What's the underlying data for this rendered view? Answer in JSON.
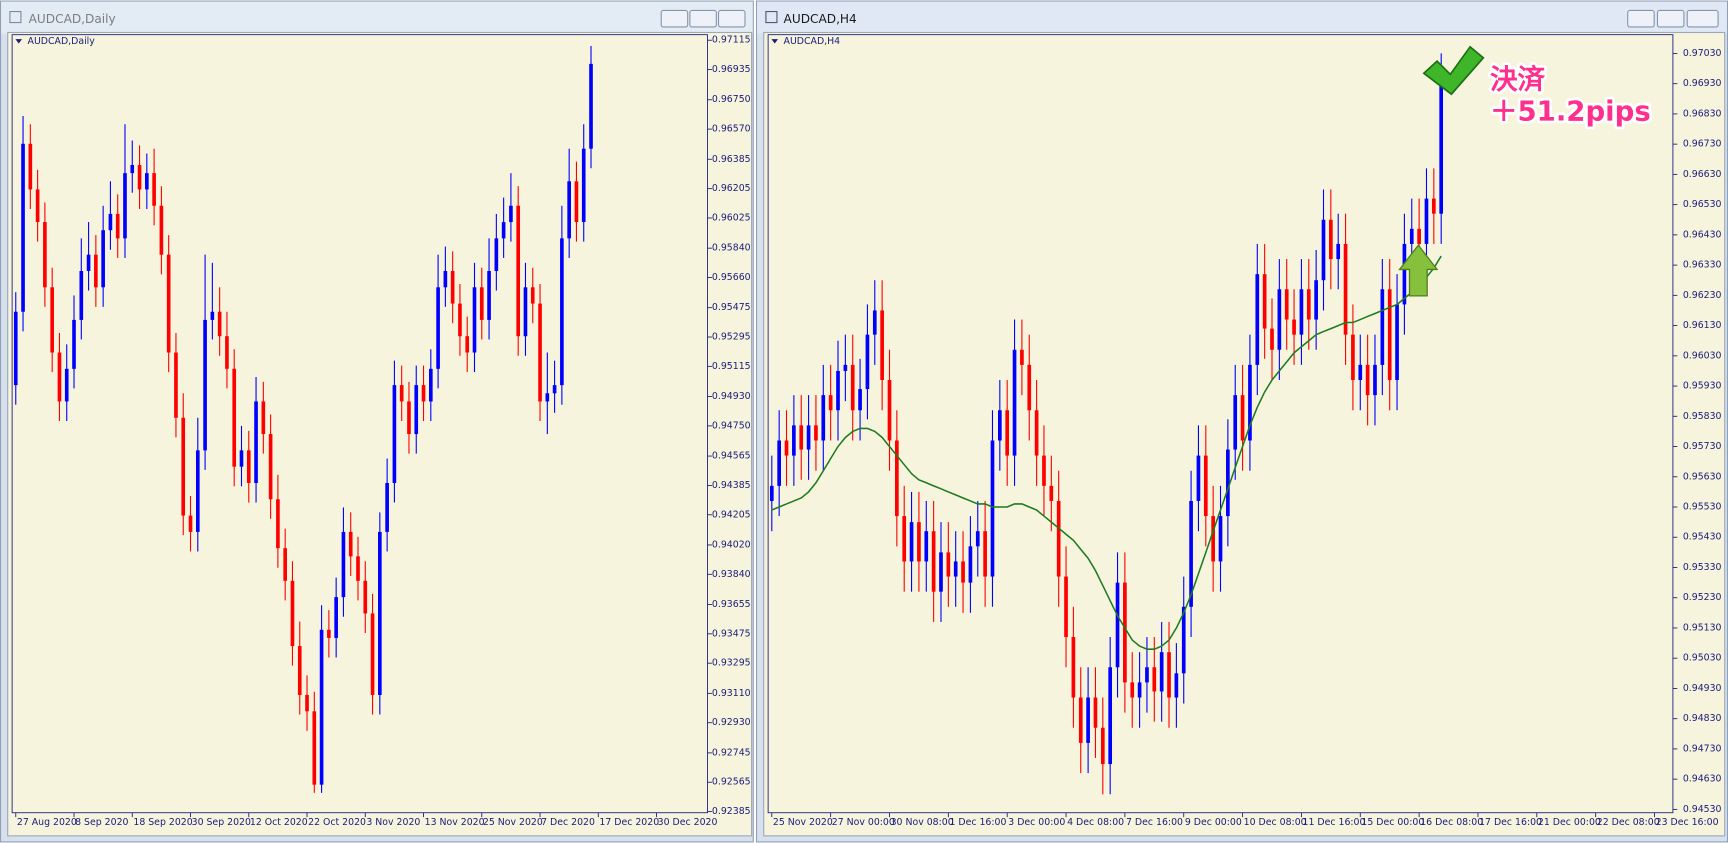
{
  "windows": [
    {
      "title": "AUDCAD,Daily"
    },
    {
      "title": "AUDCAD,H4"
    }
  ],
  "chart_data": [
    {
      "type": "candlestick",
      "label": "AUDCAD,Daily",
      "up_color": "#0000ff",
      "down_color": "#ff0000",
      "xlim": [
        -0.5,
        95
      ],
      "ylim": [
        0.92378,
        0.97149
      ],
      "xticks": [
        {
          "value": 0,
          "label": "27 Aug 2020"
        },
        {
          "value": 8,
          "label": "8 Sep 2020"
        },
        {
          "value": 16,
          "label": "18 Sep 2020"
        },
        {
          "value": 24,
          "label": "30 Sep 2020"
        },
        {
          "value": 32,
          "label": "12 Oct 2020"
        },
        {
          "value": 40,
          "label": "22 Oct 2020"
        },
        {
          "value": 48,
          "label": "3 Nov 2020"
        },
        {
          "value": 56,
          "label": "13 Nov 2020"
        },
        {
          "value": 64,
          "label": "25 Nov 2020"
        },
        {
          "value": 72,
          "label": "7 Dec 2020"
        },
        {
          "value": 80,
          "label": "17 Dec 2020"
        },
        {
          "value": 88,
          "label": "30 Dec 2020"
        }
      ],
      "yticks": [
        0.97115,
        0.96935,
        {
          "value": 0.9675,
          "label": "0.96750"
        },
        {
          "value": 0.9657,
          "label": "0.96570"
        },
        0.96385,
        0.96205,
        0.96025,
        {
          "value": 0.9584,
          "label": "0.95840"
        },
        {
          "value": 0.9566,
          "label": "0.95660"
        },
        0.95475,
        0.95295,
        0.95115,
        {
          "value": 0.9493,
          "label": "0.94930"
        },
        {
          "value": 0.9475,
          "label": "0.94750"
        },
        0.94565,
        0.94385,
        0.94205,
        {
          "value": 0.9402,
          "label": "0.94020"
        },
        {
          "value": 0.9384,
          "label": "0.93840"
        },
        0.93655,
        0.93475,
        0.93295,
        {
          "value": 0.9311,
          "label": "0.93110"
        },
        {
          "value": 0.9293,
          "label": "0.92930"
        },
        0.92745,
        0.92565,
        0.92385
      ],
      "open": [
        0.95,
        0.9545,
        0.9648,
        0.962,
        0.96,
        0.956,
        0.952,
        0.949,
        0.951,
        0.954,
        0.957,
        0.958,
        0.956,
        0.9595,
        0.9605,
        0.959,
        0.963,
        0.9635,
        0.962,
        0.963,
        0.961,
        0.958,
        0.952,
        0.948,
        0.942,
        0.941,
        0.946,
        0.954,
        0.9545,
        0.953,
        0.951,
        0.945,
        0.946,
        0.944,
        0.949,
        0.947,
        0.943,
        0.94,
        0.938,
        0.934,
        0.931,
        0.93,
        0.9255,
        0.935,
        0.9345,
        0.937,
        0.941,
        0.9395,
        0.938,
        0.936,
        0.931,
        0.941,
        0.944,
        0.95,
        0.949,
        0.947,
        0.95,
        0.949,
        0.951,
        0.956,
        0.957,
        0.955,
        0.953,
        0.952,
        0.956,
        0.954,
        0.957,
        0.959,
        0.96,
        0.961,
        0.953,
        0.956,
        0.955,
        0.949,
        0.9495,
        0.95,
        0.959,
        0.9625,
        0.96,
        0.9645
      ],
      "high": [
        0.9557,
        0.9665,
        0.966,
        0.9632,
        0.9612,
        0.9572,
        0.9532,
        0.9525,
        0.9555,
        0.959,
        0.96,
        0.9592,
        0.961,
        0.9625,
        0.9617,
        0.966,
        0.965,
        0.9647,
        0.9642,
        0.9645,
        0.9622,
        0.9592,
        0.9532,
        0.9495,
        0.9432,
        0.948,
        0.958,
        0.9575,
        0.956,
        0.9545,
        0.9522,
        0.9475,
        0.9472,
        0.9505,
        0.9502,
        0.9482,
        0.9445,
        0.9412,
        0.9392,
        0.9355,
        0.9322,
        0.9312,
        0.9365,
        0.9362,
        0.9382,
        0.9425,
        0.9422,
        0.9407,
        0.9392,
        0.9372,
        0.9422,
        0.9455,
        0.9515,
        0.9512,
        0.9502,
        0.9512,
        0.9512,
        0.9522,
        0.958,
        0.9585,
        0.9582,
        0.9562,
        0.9542,
        0.9575,
        0.9572,
        0.959,
        0.9605,
        0.9615,
        0.963,
        0.9622,
        0.9575,
        0.9572,
        0.9562,
        0.952,
        0.9515,
        0.961,
        0.9645,
        0.9637,
        0.966,
        0.9708
      ],
      "low": [
        0.9488,
        0.9533,
        0.9608,
        0.9588,
        0.9548,
        0.9508,
        0.9478,
        0.9478,
        0.9498,
        0.9528,
        0.9558,
        0.9548,
        0.9548,
        0.9583,
        0.9578,
        0.9578,
        0.9618,
        0.9608,
        0.9608,
        0.9598,
        0.9568,
        0.9508,
        0.9468,
        0.9408,
        0.9398,
        0.9398,
        0.9448,
        0.9528,
        0.9518,
        0.9498,
        0.9438,
        0.9438,
        0.9428,
        0.9428,
        0.9458,
        0.9418,
        0.9388,
        0.9368,
        0.9328,
        0.9298,
        0.9288,
        0.925,
        0.925,
        0.9333,
        0.9333,
        0.9358,
        0.9383,
        0.9368,
        0.9348,
        0.9298,
        0.9298,
        0.9398,
        0.9428,
        0.9478,
        0.9458,
        0.9458,
        0.9478,
        0.9478,
        0.9498,
        0.9548,
        0.9538,
        0.9518,
        0.9508,
        0.9508,
        0.9528,
        0.9528,
        0.9558,
        0.9578,
        0.9588,
        0.9518,
        0.9518,
        0.9538,
        0.9478,
        0.947,
        0.9483,
        0.9488,
        0.9578,
        0.9588,
        0.9588,
        0.9633
      ],
      "close": [
        0.9545,
        0.9648,
        0.962,
        0.96,
        0.956,
        0.952,
        0.949,
        0.951,
        0.954,
        0.957,
        0.958,
        0.956,
        0.9595,
        0.9605,
        0.959,
        0.963,
        0.9635,
        0.962,
        0.963,
        0.961,
        0.958,
        0.952,
        0.948,
        0.942,
        0.941,
        0.946,
        0.954,
        0.9545,
        0.953,
        0.951,
        0.945,
        0.946,
        0.944,
        0.949,
        0.947,
        0.943,
        0.94,
        0.938,
        0.934,
        0.931,
        0.93,
        0.9255,
        0.935,
        0.9345,
        0.937,
        0.941,
        0.9395,
        0.938,
        0.936,
        0.931,
        0.941,
        0.944,
        0.95,
        0.949,
        0.947,
        0.95,
        0.949,
        0.951,
        0.956,
        0.957,
        0.955,
        0.953,
        0.952,
        0.956,
        0.954,
        0.957,
        0.959,
        0.96,
        0.961,
        0.953,
        0.956,
        0.955,
        0.949,
        0.9495,
        0.95,
        0.959,
        0.9625,
        0.96,
        0.9645,
        0.9697
      ]
    },
    {
      "type": "candlestick",
      "label": "AUDCAD,H4",
      "up_color": "#0000ff",
      "down_color": "#ff0000",
      "xlim": [
        -0.5,
        122.5
      ],
      "ylim": [
        0.94519,
        0.97092
      ],
      "xticks": [
        {
          "value": 0,
          "label": "25 Nov 2020"
        },
        {
          "value": 8,
          "label": "27 Nov 00:00"
        },
        {
          "value": 16,
          "label": "30 Nov 08:00"
        },
        {
          "value": 24,
          "label": "1 Dec 16:00"
        },
        {
          "value": 32,
          "label": "3 Dec 00:00"
        },
        {
          "value": 40,
          "label": "4 Dec 08:00"
        },
        {
          "value": 48,
          "label": "7 Dec 16:00"
        },
        {
          "value": 56,
          "label": "9 Dec 00:00"
        },
        {
          "value": 64,
          "label": "10 Dec 08:00"
        },
        {
          "value": 72,
          "label": "11 Dec 16:00"
        },
        {
          "value": 80,
          "label": "15 Dec 00:00"
        },
        {
          "value": 88,
          "label": "16 Dec 08:00"
        },
        {
          "value": 96,
          "label": "17 Dec 16:00"
        },
        {
          "value": 104,
          "label": "21 Dec 00:00"
        },
        {
          "value": 112,
          "label": "22 Dec 08:00"
        },
        {
          "value": 120,
          "label": "23 Dec 16:00"
        }
      ],
      "yticks": [
        {
          "value": 0.9703,
          "label": "0.97030"
        },
        {
          "value": 0.9693,
          "label": "0.96930"
        },
        {
          "value": 0.9683,
          "label": "0.96830"
        },
        {
          "value": 0.9673,
          "label": "0.96730"
        },
        {
          "value": 0.9663,
          "label": "0.96630"
        },
        {
          "value": 0.9653,
          "label": "0.96530"
        },
        {
          "value": 0.9643,
          "label": "0.96430"
        },
        {
          "value": 0.9633,
          "label": "0.96330"
        },
        {
          "value": 0.9623,
          "label": "0.96230"
        },
        {
          "value": 0.9613,
          "label": "0.96130"
        },
        {
          "value": 0.9603,
          "label": "0.96030"
        },
        {
          "value": 0.9593,
          "label": "0.95930"
        },
        {
          "value": 0.9583,
          "label": "0.95830"
        },
        {
          "value": 0.9573,
          "label": "0.95730"
        },
        {
          "value": 0.9563,
          "label": "0.95630"
        },
        {
          "value": 0.9553,
          "label": "0.95530"
        },
        {
          "value": 0.9543,
          "label": "0.95430"
        },
        {
          "value": 0.9533,
          "label": "0.95330"
        },
        {
          "value": 0.9523,
          "label": "0.95230"
        },
        {
          "value": 0.9513,
          "label": "0.95130"
        },
        {
          "value": 0.9503,
          "label": "0.95030"
        },
        {
          "value": 0.9493,
          "label": "0.94930"
        },
        {
          "value": 0.9483,
          "label": "0.94830"
        },
        {
          "value": 0.9473,
          "label": "0.94730"
        },
        {
          "value": 0.9463,
          "label": "0.94630"
        },
        {
          "value": 0.9453,
          "label": "0.94530"
        }
      ],
      "open": [
        0.9555,
        0.956,
        0.9575,
        0.957,
        0.958,
        0.9572,
        0.958,
        0.9575,
        0.959,
        0.9585,
        0.9598,
        0.96,
        0.9585,
        0.9592,
        0.961,
        0.9618,
        0.9595,
        0.9575,
        0.955,
        0.9535,
        0.9548,
        0.9535,
        0.9545,
        0.9525,
        0.9538,
        0.953,
        0.9535,
        0.9528,
        0.954,
        0.9545,
        0.953,
        0.9575,
        0.9585,
        0.957,
        0.9605,
        0.96,
        0.9585,
        0.957,
        0.956,
        0.9555,
        0.953,
        0.951,
        0.949,
        0.9475,
        0.949,
        0.948,
        0.9468,
        0.95,
        0.9528,
        0.9495,
        0.949,
        0.9495,
        0.95,
        0.9492,
        0.9505,
        0.949,
        0.9498,
        0.952,
        0.9555,
        0.957,
        0.955,
        0.9535,
        0.955,
        0.9572,
        0.959,
        0.9575,
        0.96,
        0.963,
        0.9612,
        0.9605,
        0.9625,
        0.9615,
        0.961,
        0.9625,
        0.9615,
        0.9628,
        0.9648,
        0.9635,
        0.964,
        0.961,
        0.9595,
        0.96,
        0.959,
        0.96,
        0.9625,
        0.9595,
        0.962,
        0.964,
        0.9645,
        0.964,
        0.9655,
        0.965
      ],
      "high": [
        0.957,
        0.9585,
        0.9585,
        0.959,
        0.959,
        0.959,
        0.959,
        0.96,
        0.96,
        0.9608,
        0.961,
        0.961,
        0.9602,
        0.962,
        0.9628,
        0.9628,
        0.9605,
        0.9585,
        0.956,
        0.9558,
        0.9558,
        0.9555,
        0.9555,
        0.9548,
        0.9548,
        0.9545,
        0.9545,
        0.955,
        0.9555,
        0.9555,
        0.9585,
        0.9595,
        0.9595,
        0.9615,
        0.9615,
        0.961,
        0.9595,
        0.958,
        0.957,
        0.9565,
        0.954,
        0.952,
        0.95,
        0.95,
        0.95,
        0.949,
        0.951,
        0.9538,
        0.9538,
        0.9505,
        0.9505,
        0.951,
        0.951,
        0.9515,
        0.9515,
        0.9508,
        0.953,
        0.9565,
        0.958,
        0.958,
        0.956,
        0.956,
        0.9582,
        0.96,
        0.96,
        0.961,
        0.964,
        0.964,
        0.9622,
        0.9635,
        0.9635,
        0.9625,
        0.9635,
        0.9635,
        0.9638,
        0.9658,
        0.9658,
        0.965,
        0.965,
        0.962,
        0.961,
        0.961,
        0.961,
        0.9635,
        0.9635,
        0.963,
        0.965,
        0.9655,
        0.9655,
        0.9665,
        0.9665,
        0.9703
      ],
      "low": [
        0.9545,
        0.955,
        0.956,
        0.956,
        0.9562,
        0.9562,
        0.9565,
        0.9565,
        0.9575,
        0.9575,
        0.9588,
        0.9575,
        0.9575,
        0.9582,
        0.96,
        0.9585,
        0.9565,
        0.954,
        0.9525,
        0.9525,
        0.9525,
        0.9525,
        0.9515,
        0.9515,
        0.952,
        0.952,
        0.9518,
        0.9518,
        0.953,
        0.952,
        0.952,
        0.9565,
        0.956,
        0.956,
        0.959,
        0.9575,
        0.956,
        0.955,
        0.9545,
        0.952,
        0.95,
        0.948,
        0.9465,
        0.9465,
        0.947,
        0.9458,
        0.9458,
        0.949,
        0.9485,
        0.948,
        0.948,
        0.9485,
        0.9482,
        0.9482,
        0.948,
        0.948,
        0.9488,
        0.951,
        0.9545,
        0.954,
        0.9525,
        0.9525,
        0.954,
        0.9562,
        0.9565,
        0.9565,
        0.959,
        0.9602,
        0.9595,
        0.9595,
        0.9605,
        0.96,
        0.96,
        0.9605,
        0.9605,
        0.9618,
        0.9625,
        0.9625,
        0.96,
        0.9585,
        0.9585,
        0.958,
        0.958,
        0.959,
        0.9585,
        0.9585,
        0.961,
        0.963,
        0.963,
        0.963,
        0.964,
        0.964
      ],
      "close": [
        0.956,
        0.9575,
        0.957,
        0.958,
        0.9572,
        0.958,
        0.9575,
        0.959,
        0.9585,
        0.9598,
        0.96,
        0.9585,
        0.9592,
        0.961,
        0.9618,
        0.9595,
        0.9575,
        0.955,
        0.9535,
        0.9548,
        0.9535,
        0.9545,
        0.9525,
        0.9538,
        0.953,
        0.9535,
        0.9528,
        0.954,
        0.9545,
        0.953,
        0.9575,
        0.9585,
        0.957,
        0.9605,
        0.96,
        0.9585,
        0.957,
        0.956,
        0.9555,
        0.953,
        0.951,
        0.949,
        0.9475,
        0.949,
        0.948,
        0.9468,
        0.95,
        0.9528,
        0.9495,
        0.949,
        0.9495,
        0.95,
        0.9492,
        0.9505,
        0.949,
        0.9498,
        0.952,
        0.9555,
        0.957,
        0.955,
        0.9535,
        0.955,
        0.9572,
        0.959,
        0.9575,
        0.96,
        0.963,
        0.9612,
        0.9605,
        0.9625,
        0.9615,
        0.961,
        0.9625,
        0.9615,
        0.9628,
        0.9648,
        0.9635,
        0.964,
        0.961,
        0.9595,
        0.96,
        0.959,
        0.96,
        0.9625,
        0.9595,
        0.962,
        0.964,
        0.9645,
        0.964,
        0.9655,
        0.965,
        0.9697
      ],
      "ma": {
        "color": "#1e7b1e",
        "values": [
          0.9552,
          0.9553,
          0.9554,
          0.9555,
          0.9556,
          0.9558,
          0.9561,
          0.9565,
          0.9569,
          0.9573,
          0.9576,
          0.9578,
          0.9579,
          0.9579,
          0.9578,
          0.9576,
          0.9573,
          0.957,
          0.9567,
          0.9564,
          0.9562,
          0.9561,
          0.956,
          0.9559,
          0.9558,
          0.9557,
          0.9556,
          0.9555,
          0.9554,
          0.9554,
          0.9553,
          0.9553,
          0.9553,
          0.9554,
          0.9554,
          0.9553,
          0.9552,
          0.955,
          0.9548,
          0.9546,
          0.9544,
          0.9542,
          0.9539,
          0.9536,
          0.9532,
          0.9527,
          0.9522,
          0.9517,
          0.9513,
          0.9509,
          0.9507,
          0.9506,
          0.9506,
          0.9507,
          0.9509,
          0.9513,
          0.9518,
          0.9524,
          0.9531,
          0.9538,
          0.9545,
          0.9552,
          0.9559,
          0.9566,
          0.9573,
          0.958,
          0.9586,
          0.9591,
          0.9595,
          0.9598,
          0.9601,
          0.9604,
          0.9606,
          0.9608,
          0.961,
          0.9611,
          0.9612,
          0.9613,
          0.9614,
          0.9614,
          0.9615,
          0.9616,
          0.9617,
          0.9618,
          0.9619,
          0.962,
          0.9622,
          0.9624,
          0.9626,
          0.9629,
          0.9632,
          0.9636
        ]
      },
      "annotations": [
        "決済",
        "＋51.2pips"
      ]
    }
  ]
}
